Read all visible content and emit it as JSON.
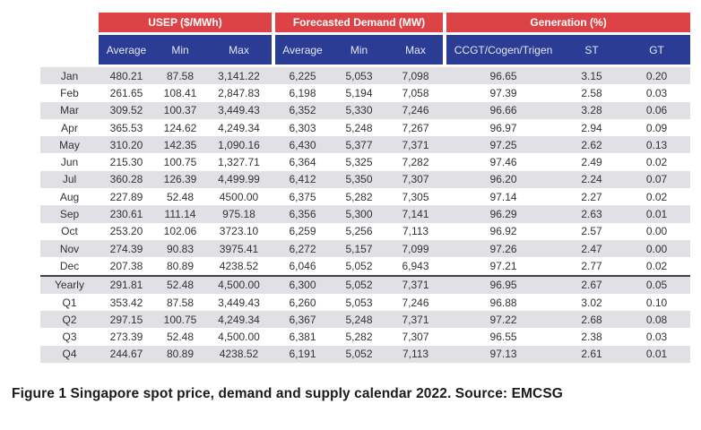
{
  "figure": {
    "table": {
      "groups": [
        {
          "label": "USEP ($/MWh)"
        },
        {
          "label": "Forecasted Demand (MW)"
        },
        {
          "label": "Generation (%)"
        }
      ],
      "columns": [
        "Average",
        "Min",
        "Max",
        "Average",
        "Min",
        "Max",
        "CCGT/Cogen/Trigen",
        "ST",
        "GT"
      ],
      "rows": [
        {
          "label": "Jan",
          "values": [
            "480.21",
            "87.58",
            "3,141.22",
            "6,225",
            "5,053",
            "7,098",
            "96.65",
            "3.15",
            "0.20"
          ]
        },
        {
          "label": "Feb",
          "values": [
            "261.65",
            "108.41",
            "2,847.83",
            "6,198",
            "5,194",
            "7,058",
            "97.39",
            "2.58",
            "0.03"
          ]
        },
        {
          "label": "Mar",
          "values": [
            "309.52",
            "100.37",
            "3,449.43",
            "6,352",
            "5,330",
            "7,246",
            "96.66",
            "3.28",
            "0.06"
          ]
        },
        {
          "label": "Apr",
          "values": [
            "365.53",
            "124.62",
            "4,249.34",
            "6,303",
            "5,248",
            "7,267",
            "96.97",
            "2.94",
            "0.09"
          ]
        },
        {
          "label": "May",
          "values": [
            "310.20",
            "142.35",
            "1,090.16",
            "6,430",
            "5,377",
            "7,371",
            "97.25",
            "2.62",
            "0.13"
          ]
        },
        {
          "label": "Jun",
          "values": [
            "215.30",
            "100.75",
            "1,327.71",
            "6,364",
            "5,325",
            "7,282",
            "97.46",
            "2.49",
            "0.02"
          ]
        },
        {
          "label": "Jul",
          "values": [
            "360.28",
            "126.39",
            "4,499.99",
            "6,412",
            "5,350",
            "7,307",
            "96.20",
            "2.24",
            "0.07"
          ]
        },
        {
          "label": "Aug",
          "values": [
            "227.89",
            "52.48",
            "4500.00",
            "6,375",
            "5,282",
            "7,305",
            "97.14",
            "2.27",
            "0.02"
          ]
        },
        {
          "label": "Sep",
          "values": [
            "230.61",
            "111.14",
            "975.18",
            "6,356",
            "5,300",
            "7,141",
            "96.29",
            "2.63",
            "0.01"
          ]
        },
        {
          "label": "Oct",
          "values": [
            "253.20",
            "102.06",
            "3723.10",
            "6,259",
            "5,256",
            "7,113",
            "96.92",
            "2.57",
            "0.00"
          ]
        },
        {
          "label": "Nov",
          "values": [
            "274.39",
            "90.83",
            "3975.41",
            "6,272",
            "5,157",
            "7,099",
            "97.26",
            "2.47",
            "0.00"
          ]
        },
        {
          "label": "Dec",
          "values": [
            "207.38",
            "80.89",
            "4238.52",
            "6,046",
            "5,052",
            "6,943",
            "97.21",
            "2.77",
            "0.02"
          ]
        },
        {
          "label": "Yearly",
          "values": [
            "291.81",
            "52.48",
            "4,500.00",
            "6,300",
            "5,052",
            "7,371",
            "96.95",
            "2.67",
            "0.05"
          ],
          "separator_above": true
        },
        {
          "label": "Q1",
          "values": [
            "353.42",
            "87.58",
            "3,449.43",
            "6,260",
            "5,053",
            "7,246",
            "96.88",
            "3.02",
            "0.10"
          ]
        },
        {
          "label": "Q2",
          "values": [
            "297.15",
            "100.75",
            "4,249.34",
            "6,367",
            "5,248",
            "7,371",
            "97.22",
            "2.68",
            "0.08"
          ]
        },
        {
          "label": "Q3",
          "values": [
            "273.39",
            "52.48",
            "4,500.00",
            "6,381",
            "5,282",
            "7,307",
            "96.55",
            "2.38",
            "0.03"
          ]
        },
        {
          "label": "Q4",
          "values": [
            "244.67",
            "80.89",
            "4238.52",
            "6,191",
            "5,052",
            "7,113",
            "97.13",
            "2.61",
            "0.01"
          ]
        }
      ]
    },
    "caption": "Figure 1 Singapore spot price, demand and supply calendar 2022. Source: EMCSG"
  },
  "colors": {
    "group_header_bg": "#DD4346",
    "sub_header_bg": "#2A3C94",
    "header_text": "#FFFFFF",
    "sub_header_text": "#E3E7F4",
    "row_stripe": "#E0E0E5",
    "separator": "#404040",
    "body_text": "#333333"
  }
}
